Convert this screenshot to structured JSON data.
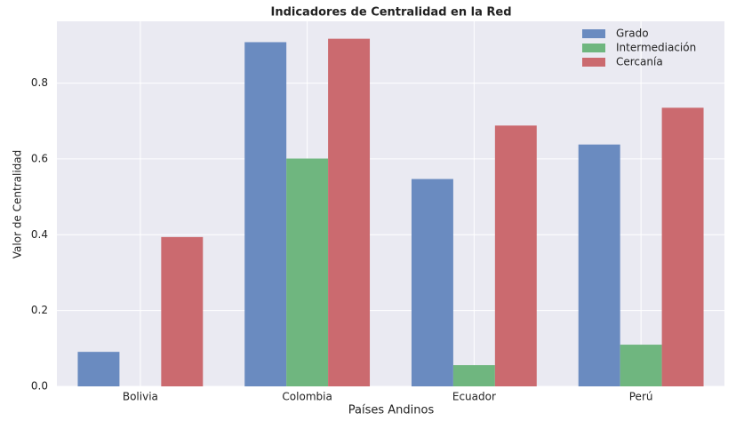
{
  "chart_data": {
    "type": "bar",
    "title": "Indicadores de Centralidad en la Red",
    "x_label": "Países Andinos",
    "y_label": "Valor de Centralidad",
    "categories": [
      "Bolivia",
      "Colombia",
      "Ecuador",
      "Perú"
    ],
    "series": [
      {
        "name": "Grado",
        "color": "#6a8bc0",
        "values": [
          0.091,
          0.908,
          0.547,
          0.638
        ]
      },
      {
        "name": "Intermediación",
        "color": "#6fb67f",
        "values": [
          0,
          0.601,
          0.056,
          0.11
        ]
      },
      {
        "name": "Cercanía",
        "color": "#cb6a6f",
        "values": [
          0.394,
          0.917,
          0.688,
          0.735
        ]
      }
    ],
    "ylim": [
      0,
      0.963
    ],
    "yticks": [
      {
        "value": 0,
        "label": "0.0"
      },
      0.2,
      0.4,
      0.6,
      0.8
    ],
    "grid": true,
    "legend": "upper-right"
  }
}
